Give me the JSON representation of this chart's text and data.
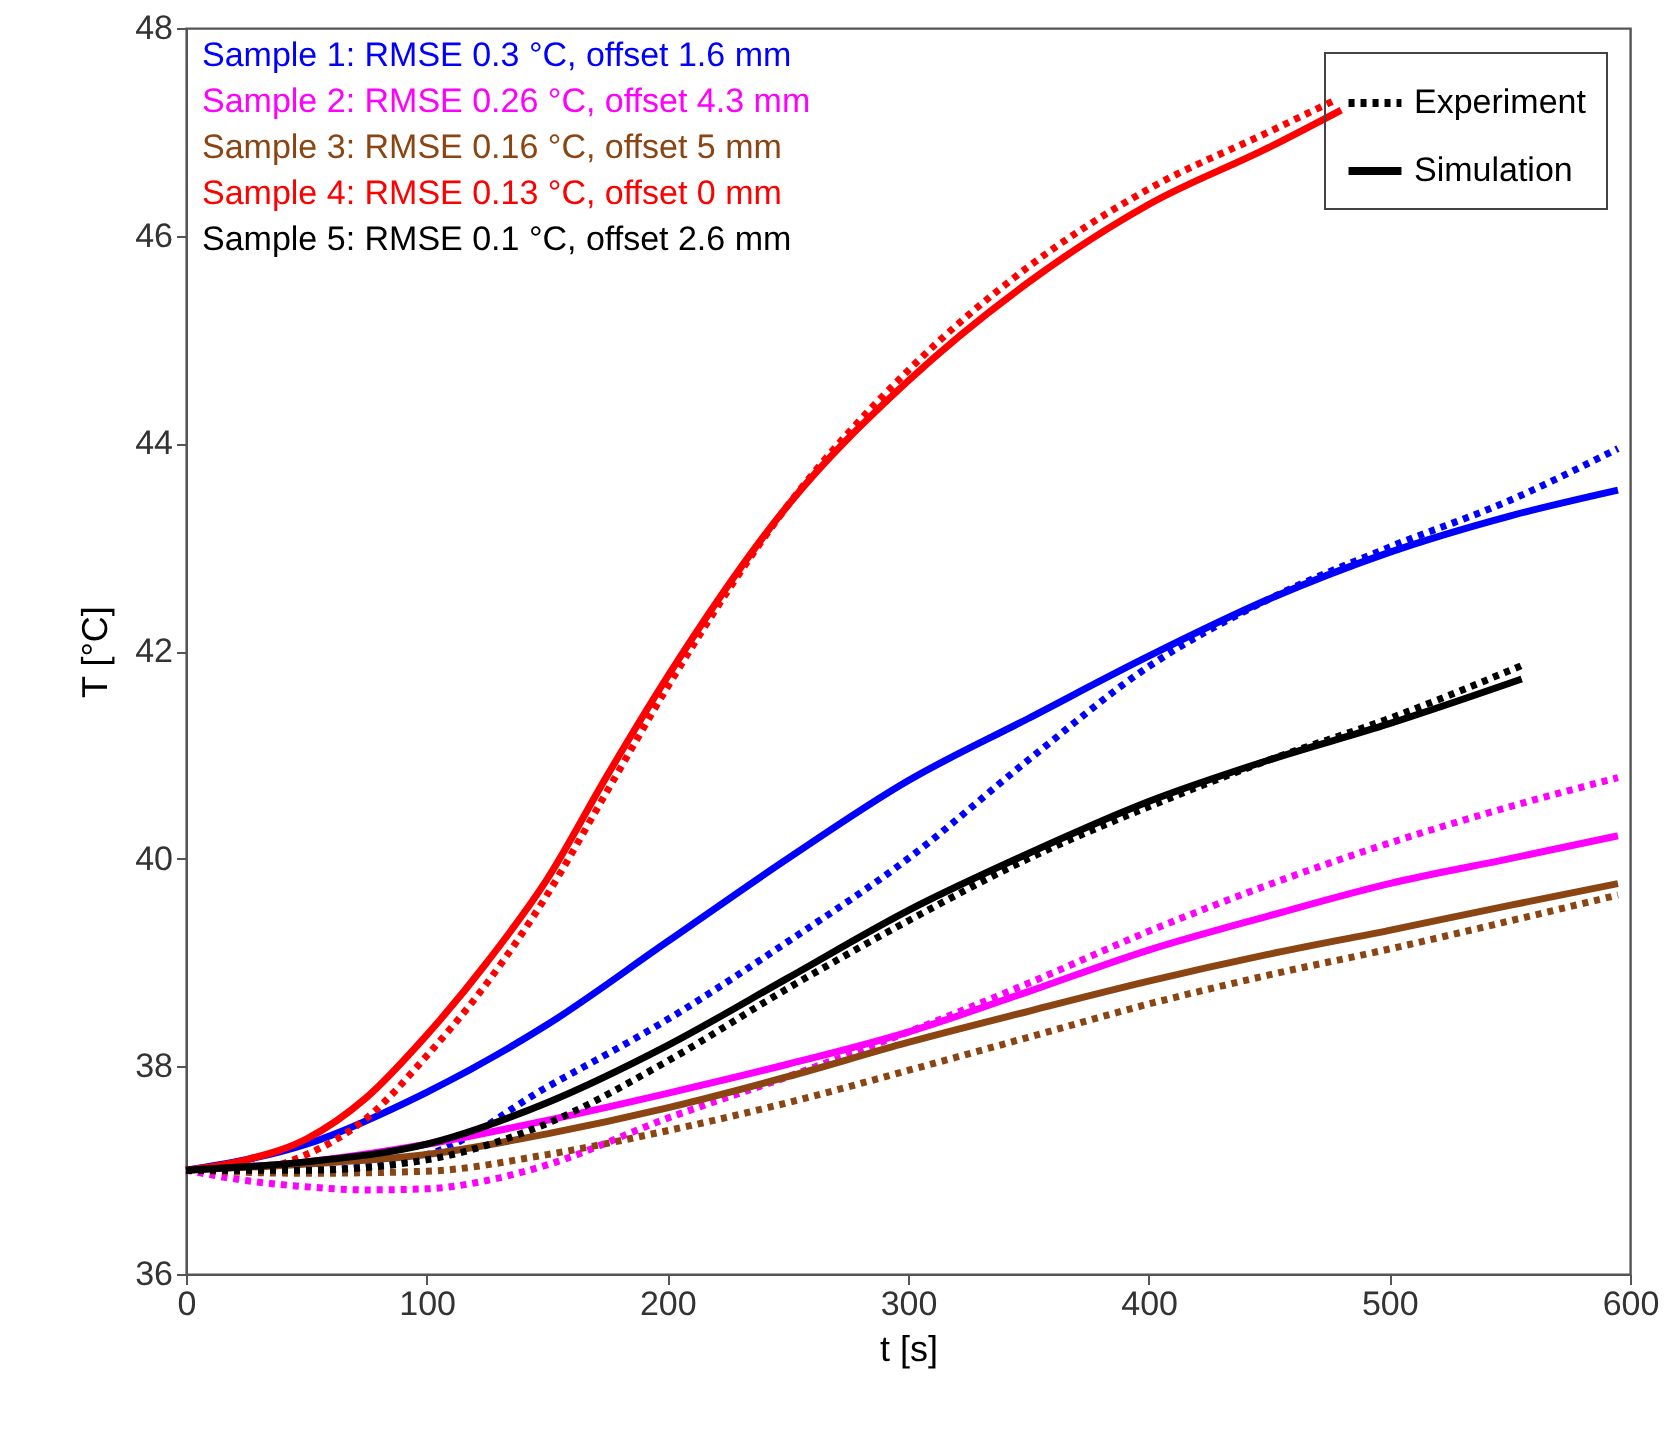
{
  "chart_data": {
    "type": "line",
    "xlabel": "t [s]",
    "ylabel": "T [°C]",
    "xlim": [
      0,
      600
    ],
    "xticks": [
      0,
      100,
      200,
      300,
      400,
      500,
      600
    ],
    "ylim": [
      36,
      48
    ],
    "yticks": [
      36,
      38,
      40,
      42,
      44,
      46,
      48
    ],
    "grid": false,
    "legend": "top right",
    "marker": "none",
    "annotations": [
      "Sample 1: RMSE 0.3 °C, offset 1.6 mm",
      "Sample 2: RMSE 0.26 °C, offset 4.3 mm",
      "Sample 3: RMSE 0.16 °C, offset 5 mm",
      "Sample 4: RMSE 0.13 °C, offset 0 mm",
      "Sample 5: RMSE 0.1 °C, offset 2.6 mm"
    ],
    "series": [
      {
        "color": "#0000ff",
        "line_style": "dotted",
        "x": [
          0,
          50,
          100,
          150,
          200,
          250,
          300,
          350,
          400,
          450,
          500,
          550,
          595
        ],
        "values": [
          37,
          37.0,
          37.15,
          37.8,
          38.45,
          39.2,
          40.0,
          40.95,
          41.85,
          42.5,
          43.0,
          43.45,
          43.95
        ]
      },
      {
        "color": "#0000ff",
        "line_style": "solid",
        "x": [
          0,
          50,
          100,
          150,
          200,
          250,
          300,
          350,
          400,
          450,
          500,
          550,
          595
        ],
        "values": [
          37,
          37.25,
          37.75,
          38.4,
          39.2,
          40.0,
          40.75,
          41.35,
          41.95,
          42.5,
          42.95,
          43.3,
          43.55
        ]
      },
      {
        "color": "#ff00ff",
        "line_style": "dotted",
        "x": [
          0,
          25,
          50,
          75,
          100,
          125,
          150,
          200,
          250,
          300,
          350,
          400,
          450,
          500,
          550,
          595
        ],
        "values": [
          37,
          36.9,
          36.84,
          36.81,
          36.82,
          36.9,
          37.05,
          37.5,
          37.9,
          38.33,
          38.8,
          39.3,
          39.75,
          40.15,
          40.5,
          40.78
        ]
      },
      {
        "color": "#ff00ff",
        "line_style": "solid",
        "x": [
          0,
          50,
          100,
          150,
          200,
          250,
          300,
          350,
          400,
          450,
          500,
          550,
          595
        ],
        "values": [
          37,
          37.08,
          37.25,
          37.48,
          37.74,
          38.02,
          38.33,
          38.72,
          39.12,
          39.45,
          39.76,
          40.0,
          40.22
        ]
      },
      {
        "color": "#8b4513",
        "line_style": "dotted",
        "x": [
          0,
          50,
          100,
          150,
          200,
          250,
          300,
          350,
          400,
          450,
          500,
          550,
          595
        ],
        "values": [
          37,
          36.97,
          36.99,
          37.15,
          37.38,
          37.65,
          37.96,
          38.28,
          38.6,
          38.88,
          39.13,
          39.4,
          39.65
        ]
      },
      {
        "color": "#8b4513",
        "line_style": "solid",
        "x": [
          0,
          50,
          100,
          150,
          200,
          250,
          300,
          350,
          400,
          450,
          500,
          550,
          595
        ],
        "values": [
          37,
          37.06,
          37.15,
          37.35,
          37.6,
          37.9,
          38.23,
          38.53,
          38.82,
          39.08,
          39.31,
          39.55,
          39.76
        ]
      },
      {
        "color": "#ff0000",
        "line_style": "dotted",
        "x": [
          0,
          25,
          50,
          75,
          100,
          125,
          150,
          175,
          200,
          250,
          300,
          350,
          400,
          450,
          477
        ],
        "values": [
          37,
          37.0,
          37.15,
          37.5,
          38.1,
          38.8,
          39.65,
          40.65,
          41.65,
          43.4,
          44.7,
          45.7,
          46.45,
          47.0,
          47.3
        ]
      },
      {
        "color": "#ff0000",
        "line_style": "solid",
        "x": [
          0,
          25,
          50,
          75,
          100,
          125,
          150,
          175,
          200,
          250,
          300,
          350,
          400,
          450,
          480
        ],
        "values": [
          37,
          37.1,
          37.3,
          37.7,
          38.3,
          39.0,
          39.8,
          40.8,
          41.75,
          43.4,
          44.6,
          45.55,
          46.3,
          46.85,
          47.21
        ]
      },
      {
        "name": "Experiment",
        "color": "#000000",
        "line_style": "dotted",
        "x": [
          0,
          50,
          100,
          150,
          200,
          250,
          300,
          350,
          400,
          450,
          500,
          555
        ],
        "values": [
          37,
          37.0,
          37.1,
          37.45,
          38.05,
          38.75,
          39.4,
          40.0,
          40.5,
          40.95,
          41.35,
          41.86
        ]
      },
      {
        "name": "Simulation",
        "color": "#000000",
        "line_style": "solid",
        "x": [
          0,
          50,
          100,
          150,
          200,
          250,
          300,
          350,
          400,
          450,
          500,
          555
        ],
        "values": [
          37,
          37.08,
          37.25,
          37.65,
          38.2,
          38.85,
          39.5,
          40.05,
          40.55,
          40.95,
          41.3,
          41.73
        ]
      }
    ]
  }
}
